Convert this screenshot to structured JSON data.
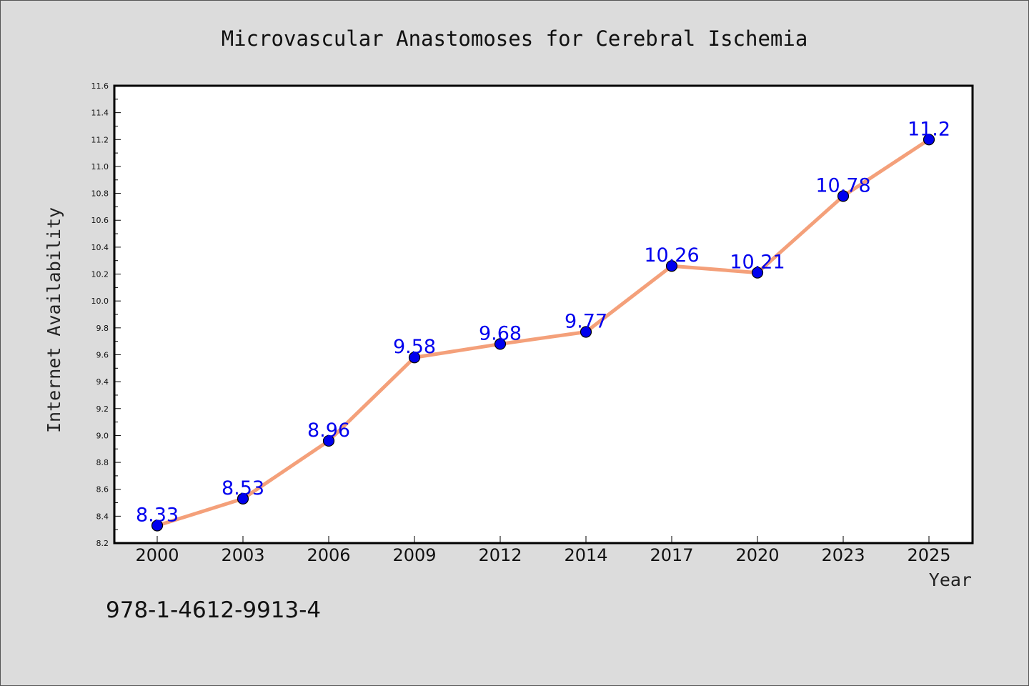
{
  "chart_data": {
    "type": "line",
    "title": "Microvascular Anastomoses for Cerebral Ischemia",
    "xlabel": "Year",
    "ylabel": "Internet Availability",
    "categories": [
      "2000",
      "2003",
      "2006",
      "2009",
      "2012",
      "2014",
      "2017",
      "2020",
      "2023",
      "2025"
    ],
    "values": [
      8.33,
      8.53,
      8.96,
      9.58,
      9.68,
      9.77,
      10.26,
      10.21,
      10.78,
      11.2
    ],
    "data_labels": [
      "8.33",
      "8.53",
      "8.96",
      "9.58",
      "9.68",
      "9.77",
      "10.26",
      "10.21",
      "10.78",
      "11.2"
    ],
    "ylim": [
      8.2,
      11.6
    ],
    "yticks": [
      "8.2",
      "8.4",
      "8.6",
      "8.8",
      "9.0",
      "9.2",
      "9.4",
      "9.6",
      "9.8",
      "10.0",
      "10.2",
      "10.4",
      "10.6",
      "10.8",
      "11.0",
      "11.2",
      "11.4",
      "11.6"
    ],
    "grid": false,
    "line_color": "#f4a07a",
    "marker_color": "#0000ee",
    "label_color": "#0000ee"
  },
  "footer": {
    "isbn": "978-1-4612-9913-4"
  }
}
